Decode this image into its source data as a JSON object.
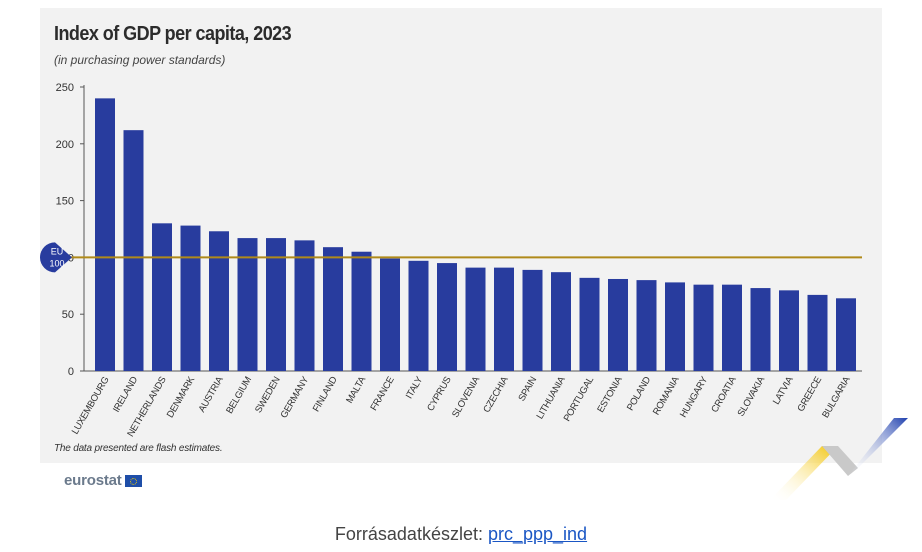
{
  "chart_data": {
    "type": "bar",
    "title": "Index of GDP per capita, 2023",
    "subtitle": "(in purchasing power standards)",
    "categories": [
      "LUXEMBOURG",
      "IRELAND",
      "NETHERLANDS",
      "DENMARK",
      "AUSTRIA",
      "BELGIUM",
      "SWEDEN",
      "GERMANY",
      "FINLAND",
      "MALTA",
      "FRANCE",
      "ITALY",
      "CYPRUS",
      "SLOVENIA",
      "CZECHIA",
      "SPAIN",
      "LITHUANIA",
      "PORTUGAL",
      "ESTONIA",
      "POLAND",
      "ROMANIA",
      "HUNGARY",
      "CROATIA",
      "SLOVAKIA",
      "LATVIA",
      "GREECE",
      "BULGARIA"
    ],
    "values": [
      240,
      212,
      130,
      128,
      123,
      117,
      117,
      115,
      109,
      105,
      99,
      97,
      95,
      91,
      91,
      89,
      87,
      82,
      81,
      80,
      78,
      76,
      76,
      73,
      71,
      67,
      64
    ],
    "ylim": [
      0,
      250
    ],
    "yticks": [
      0,
      50,
      100,
      150,
      200,
      250
    ],
    "reference_line": {
      "value": 100,
      "label_line1": "EU",
      "label_line2": "100"
    },
    "bar_color": "#283c9e",
    "reference_color": "#b08a1a",
    "grid": false
  },
  "footnote": "The data presented are flash estimates.",
  "logo": {
    "text": "eurostat"
  },
  "source": {
    "label": "Forrásadatkészlet:",
    "link": "prc_ppp_ind"
  }
}
